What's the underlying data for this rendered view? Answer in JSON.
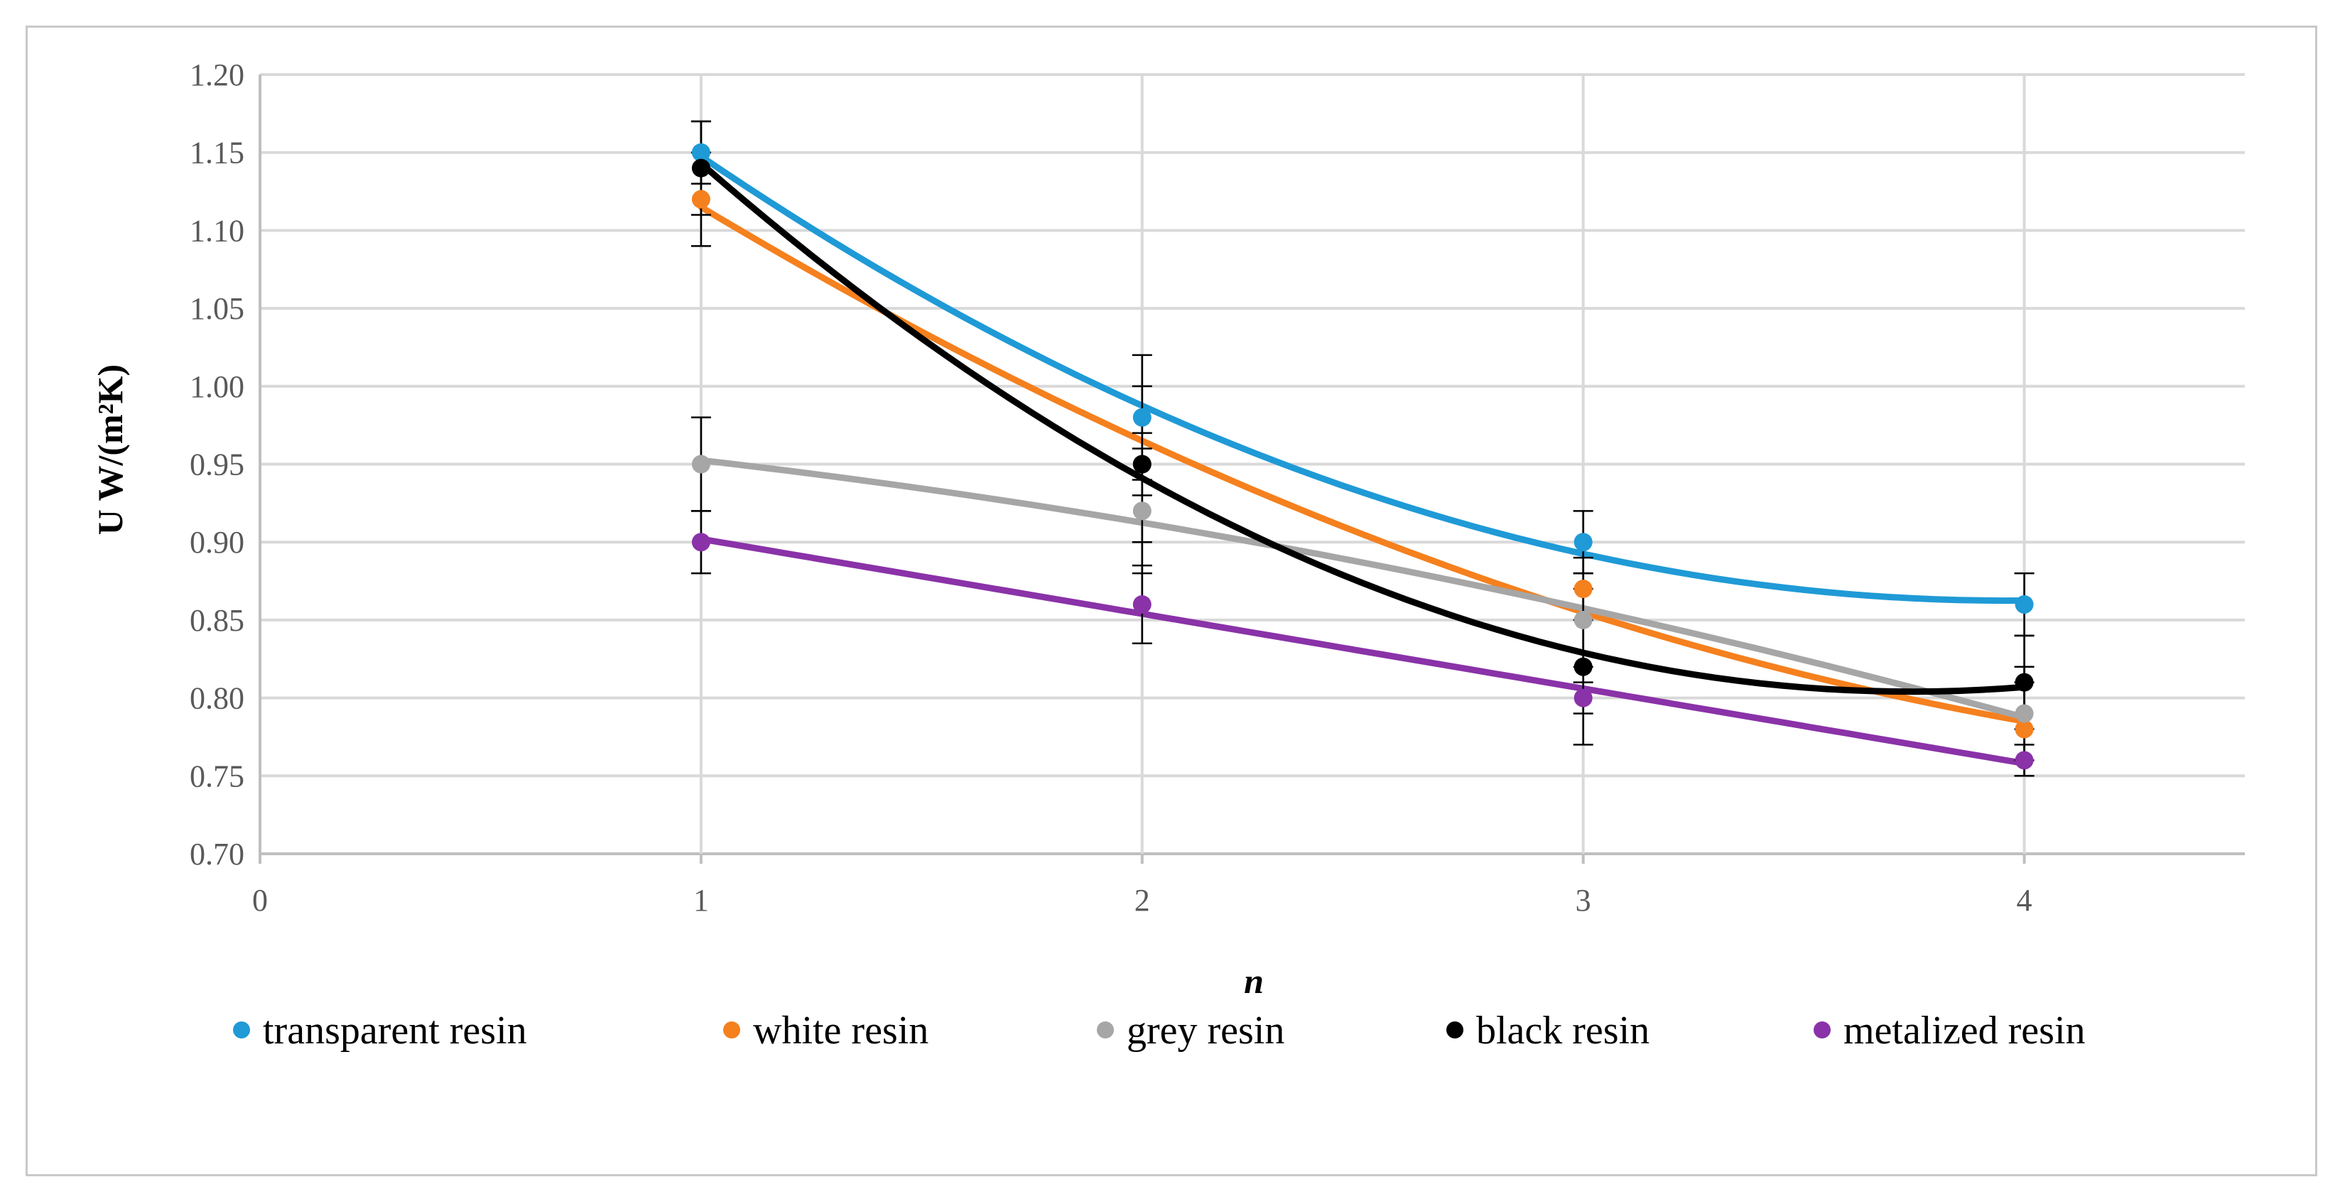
{
  "chart_data": {
    "type": "scatter",
    "title": "",
    "xlabel": "n",
    "ylabel": "U W/(m²K)",
    "xlim": [
      0,
      4.5
    ],
    "ylim": [
      0.7,
      1.2
    ],
    "x_ticks": [
      "0",
      "1",
      "2",
      "3",
      "4"
    ],
    "y_ticks": [
      "0.70",
      "0.75",
      "0.80",
      "0.85",
      "0.90",
      "0.95",
      "1.00",
      "1.05",
      "1.10",
      "1.15",
      "1.20"
    ],
    "grid": true,
    "legend_position": "bottom",
    "series": [
      {
        "name": "transparent resin",
        "color": "#1f9ad6",
        "x": [
          1,
          2,
          3,
          4
        ],
        "y": [
          1.15,
          0.98,
          0.9,
          0.86
        ],
        "error": [
          0.02,
          0.02,
          0.02,
          0.02
        ],
        "trend": "polynomial"
      },
      {
        "name": "white resin",
        "color": "#f5801e",
        "x": [
          1,
          2,
          3,
          4
        ],
        "y": [
          1.12,
          0.95,
          0.87,
          0.78
        ],
        "error": [
          0.03,
          0.02,
          0.02,
          0.03
        ],
        "trend": "polynomial"
      },
      {
        "name": "grey resin",
        "color": "#a6a6a6",
        "x": [
          1,
          2,
          3,
          4
        ],
        "y": [
          0.95,
          0.92,
          0.85,
          0.79
        ],
        "error": [
          0.03,
          0.02,
          0.03,
          0.03
        ],
        "trend": "polynomial"
      },
      {
        "name": "black resin",
        "color": "#000000",
        "x": [
          1,
          2,
          3,
          4
        ],
        "y": [
          1.14,
          0.95,
          0.82,
          0.81
        ],
        "error": [
          0.03,
          0.07,
          0.05,
          0.03
        ],
        "trend": "polynomial"
      },
      {
        "name": "metalized resin",
        "color": "#8a32a8",
        "x": [
          1,
          2,
          3,
          4
        ],
        "y": [
          0.9,
          0.86,
          0.8,
          0.76
        ],
        "error": [
          0.02,
          0.025,
          0.01,
          0.01
        ],
        "trend": "polynomial"
      }
    ]
  }
}
